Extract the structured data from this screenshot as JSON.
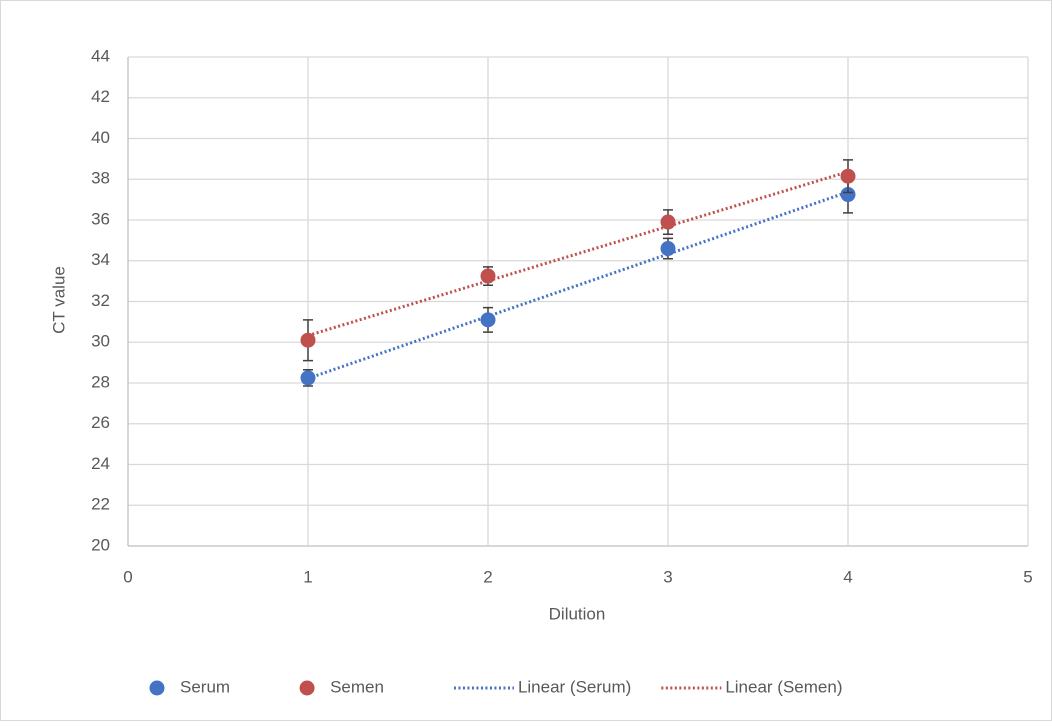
{
  "chart_data": {
    "type": "scatter",
    "xlabel": "Dilution",
    "ylabel": "CT value",
    "xlim": [
      0,
      5
    ],
    "xticks": [
      0,
      1,
      2,
      3,
      4,
      5
    ],
    "ylim": [
      20,
      44
    ],
    "yticks": [
      20,
      22,
      24,
      26,
      28,
      30,
      32,
      34,
      36,
      38,
      40,
      42,
      44
    ],
    "grid": true,
    "legend": "bottom",
    "series": [
      {
        "name": "Serum",
        "color": "#4472c4",
        "x": [
          1,
          2,
          3,
          4
        ],
        "values": [
          28.25,
          31.1,
          34.6,
          37.25
        ],
        "errors": [
          0.4,
          0.6,
          0.5,
          0.9
        ],
        "trendline": {
          "type": "linear",
          "name": "Linear (Serum)"
        }
      },
      {
        "name": "Semen",
        "color": "#c0504d",
        "x": [
          1,
          2,
          3,
          4
        ],
        "values": [
          30.1,
          33.25,
          35.9,
          38.15
        ],
        "errors": [
          1.0,
          0.45,
          0.6,
          0.8
        ],
        "trendline": {
          "type": "linear",
          "name": "Linear (Semen)"
        }
      }
    ]
  }
}
